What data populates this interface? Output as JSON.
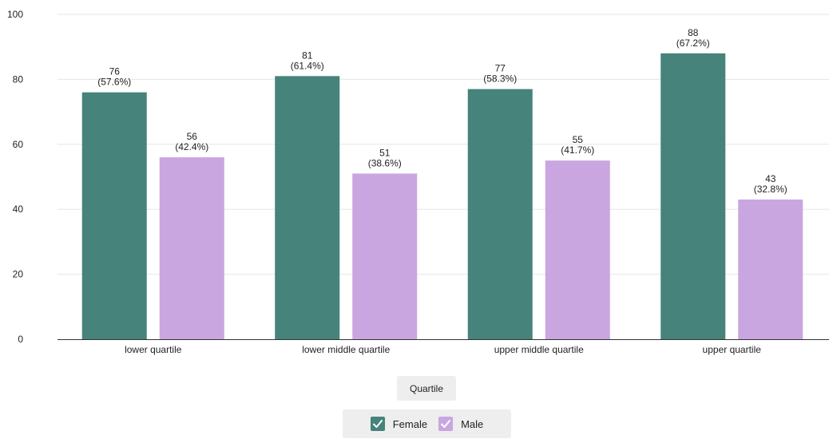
{
  "chart_data": {
    "type": "bar",
    "categories": [
      "lower quartile",
      "lower middle quartile",
      "upper middle quartile",
      "upper quartile"
    ],
    "series": [
      {
        "name": "Female",
        "color": "#45837b",
        "values": [
          76,
          81,
          77,
          88
        ],
        "percent_labels": [
          "(57.6%)",
          "(61.4%)",
          "(58.3%)",
          "(67.2%)"
        ]
      },
      {
        "name": "Male",
        "color": "#c9a6e0",
        "values": [
          56,
          51,
          55,
          43
        ],
        "percent_labels": [
          "(42.4%)",
          "(38.6%)",
          "(41.7%)",
          "(32.8%)"
        ]
      }
    ],
    "xlabel": "Quartile",
    "ylabel": "",
    "ylim": [
      0,
      100
    ],
    "yticks": [
      0,
      20,
      40,
      60,
      80,
      100
    ],
    "grid": true,
    "legend_position": "bottom"
  },
  "legend": {
    "items": [
      {
        "label": "Female",
        "icon": "check-icon",
        "color": "#45837b"
      },
      {
        "label": "Male",
        "icon": "check-icon",
        "color": "#c9a6e0"
      }
    ]
  }
}
